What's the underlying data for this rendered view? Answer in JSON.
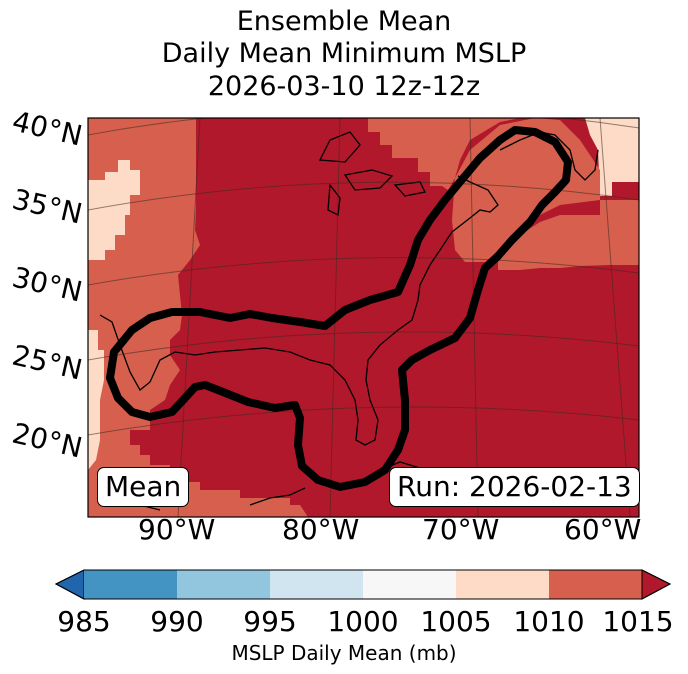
{
  "title": {
    "line1": "Ensemble Mean",
    "line2": "Daily Mean Minimum MSLP",
    "line3": "2026-03-10 12z-12z"
  },
  "map": {
    "lat_labels": [
      "40°N",
      "35°N",
      "30°N",
      "25°N",
      "20°N"
    ],
    "lon_labels": [
      "90°W",
      "80°W",
      "70°W",
      "60°W"
    ],
    "stat_label": "Mean",
    "run_label": "Run: 2026-02-13",
    "field_colors": {
      "1005-1010": "#fddbc7",
      "1010-1015": "#d6604d",
      "1015+": "#b2182b"
    }
  },
  "colorbar": {
    "ticks": [
      "985",
      "990",
      "995",
      "1000",
      "1005",
      "1010",
      "1015"
    ],
    "label": "MSLP Daily Mean (mb)",
    "colors": [
      "#2166ac",
      "#4393c3",
      "#92c5de",
      "#d1e5f0",
      "#f7f7f7",
      "#fddbc7",
      "#d6604d",
      "#b2182b"
    ]
  }
}
